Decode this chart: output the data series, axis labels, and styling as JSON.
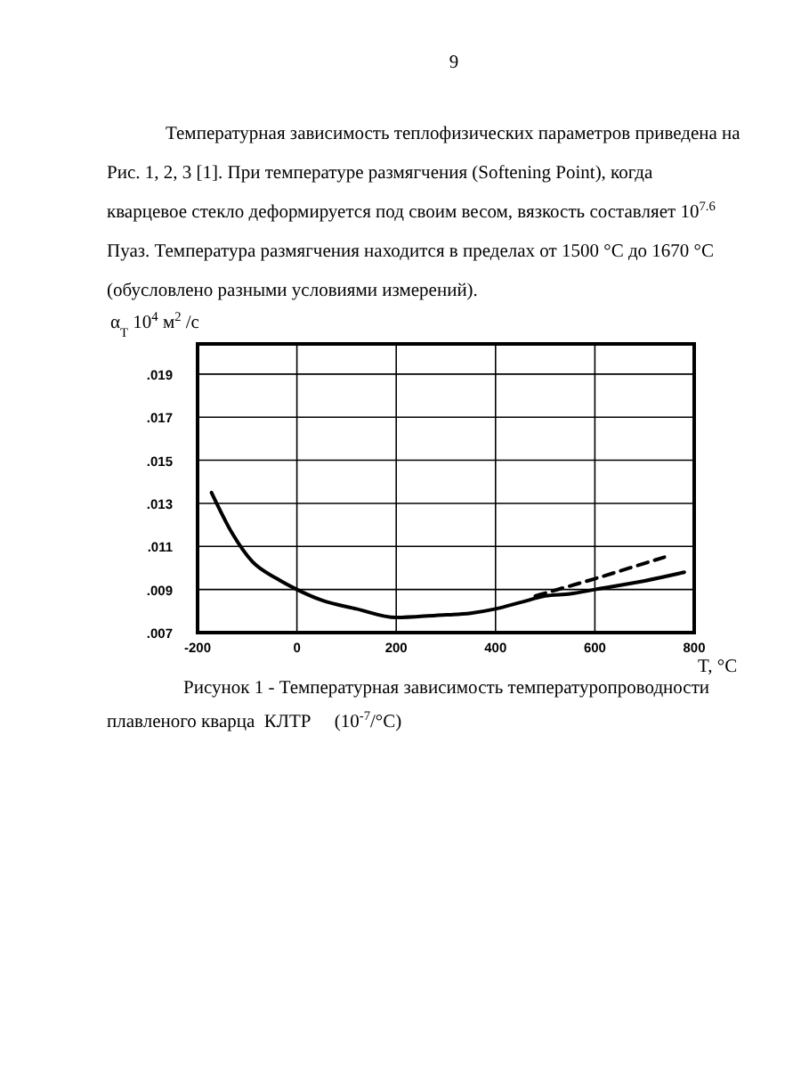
{
  "chart_data": {
    "type": "line",
    "title": "Рисунок 1  - Температурная зависимость температуропроводности",
    "subtitle": "плавленого кварца  КЛТР     (10$^{-7}$/°C)",
    "xlabel": "T, °C",
    "ylabel": "α$_{T}$ 10$^{4}$ м$^{2}$ /с",
    "annotations": [
      "9",
      "Температурная зависимость теплофизических параметров приведена на",
      "Рис. 1, 2, 3 [1].     При температуре размягчения (Softening Point), когда",
      "кварцевое стекло деформируется под своим весом, вязкость составляет 10$^{7.6}$",
      "Пуаз. Температура размягчения находится в пределах от 1500 °C  до  1670 °C",
      "(обусловлено разными условиями измерений)."
    ],
    "series": [
      {
        "color": "#000000",
        "line_style": "solid",
        "x": [
          -172,
          -130,
          -90,
          -40,
          0,
          50,
          120,
          200,
          280,
          350,
          400,
          450,
          500,
          550,
          600,
          700,
          780
        ],
        "values": [
          0.0135,
          0.0116,
          0.0103,
          0.0095,
          0.009,
          0.0085,
          0.0081,
          0.0077,
          0.0078,
          0.0079,
          0.0081,
          0.0084,
          0.0087,
          0.0088,
          0.009,
          0.0094,
          0.0098
        ]
      },
      {
        "color": "#000000",
        "line_style": "dashed",
        "x": [
          480,
          540,
          600,
          670,
          740
        ],
        "values": [
          0.0087,
          0.0091,
          0.0095,
          0.01,
          0.0105
        ]
      }
    ],
    "xlim": [
      -200,
      800
    ],
    "ylim": [
      0.007,
      0.0204
    ],
    "xticks": [
      -200,
      0,
      200,
      400,
      600,
      800
    ],
    "yticks": [
      {
        "value": 0.007,
        "label": ".007"
      },
      {
        "value": 0.009,
        "label": ".009"
      },
      {
        "value": 0.011,
        "label": ".011"
      },
      {
        "value": 0.013,
        "label": ".013"
      },
      {
        "value": 0.015,
        "label": ".015"
      },
      {
        "value": 0.017,
        "label": ".017"
      },
      {
        "value": 0.019,
        "label": ".019"
      }
    ],
    "grid": true,
    "marker": "none"
  }
}
